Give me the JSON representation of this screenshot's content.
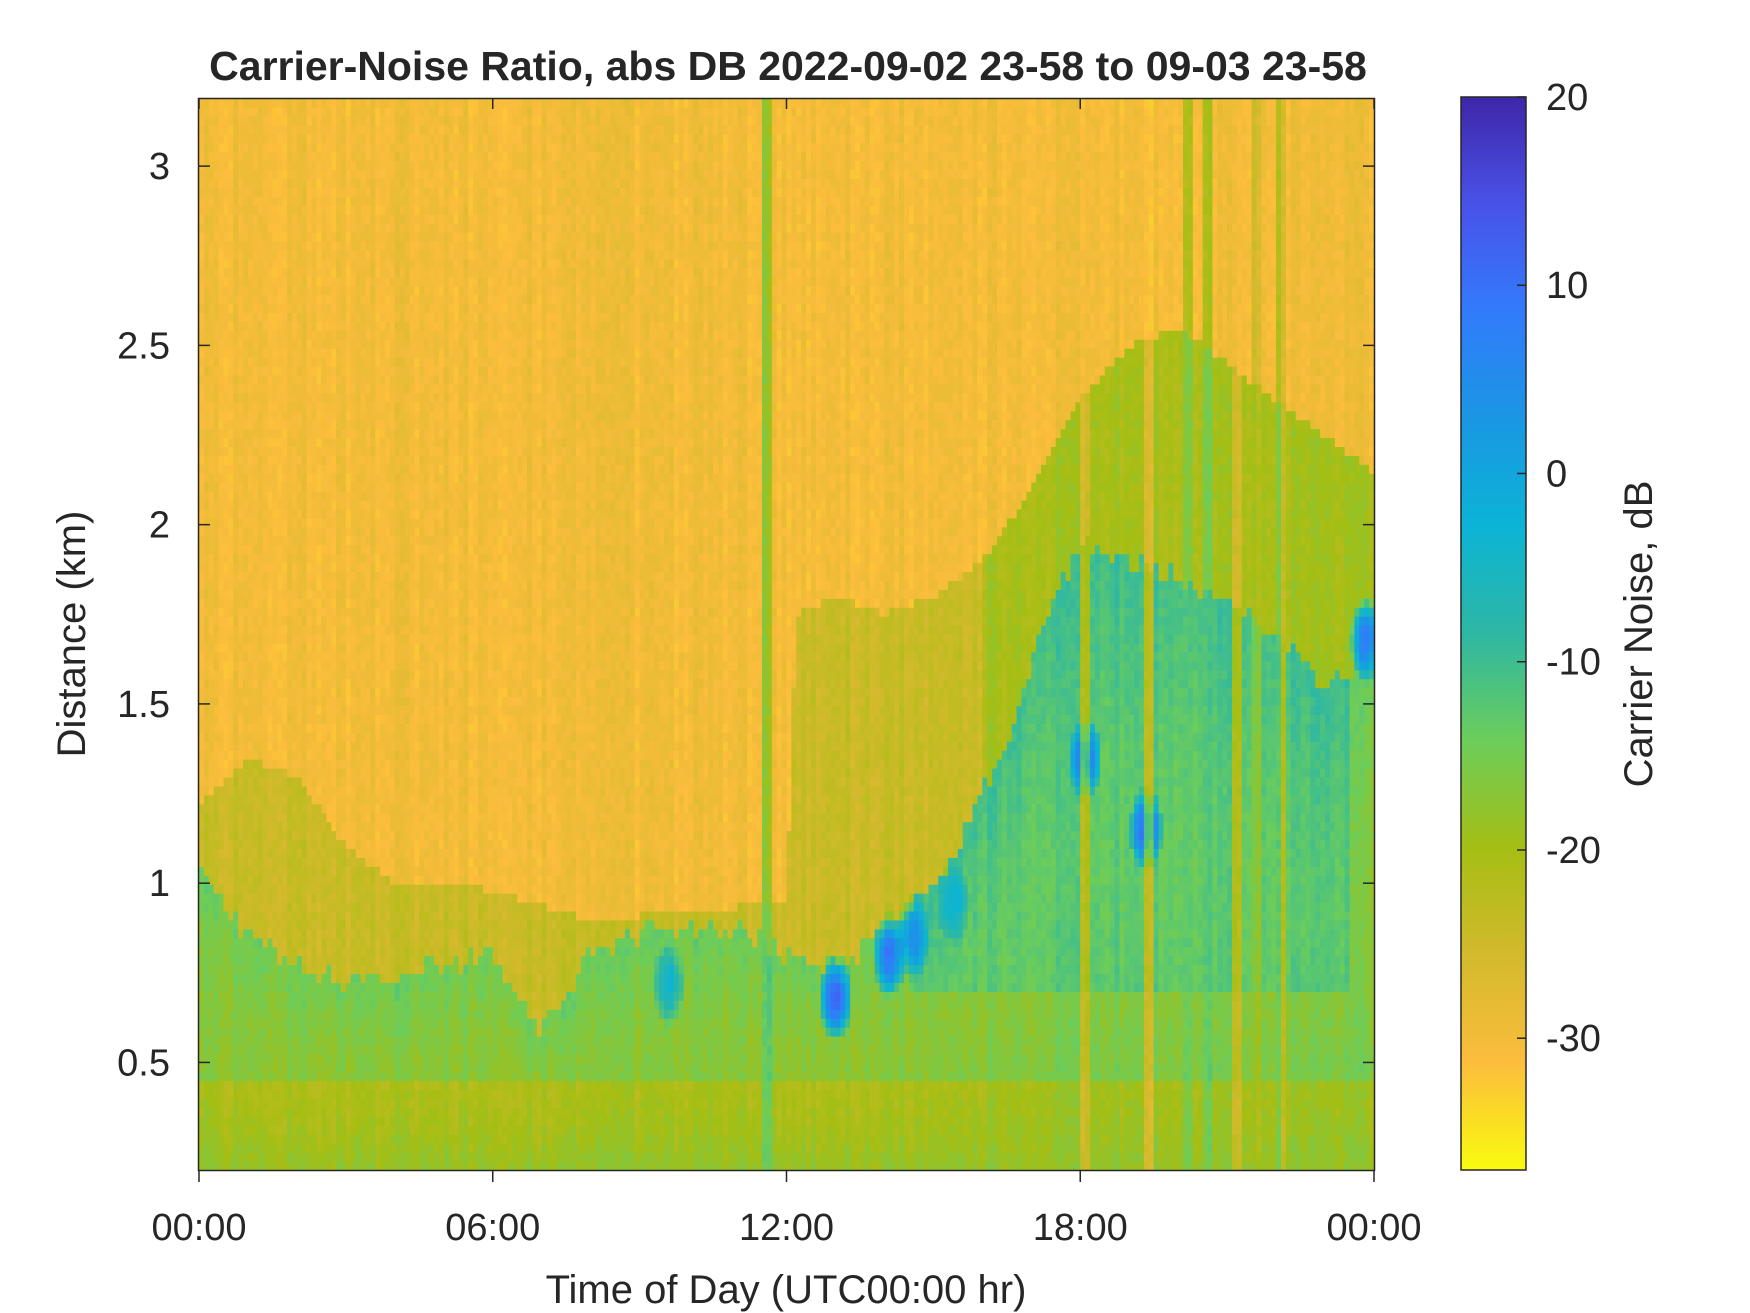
{
  "chart_data": {
    "type": "heatmap",
    "title": "Carrier-Noise Ratio, abs DB 2022-09-02 23-58 to 09-03 23-58",
    "xlabel": "Time of Day (UTC00:00 hr)",
    "ylabel": "Distance (km)",
    "x_ticks": [
      {
        "value": 0,
        "label": "00:00"
      },
      {
        "value": 6,
        "label": "06:00"
      },
      {
        "value": 12,
        "label": "12:00"
      },
      {
        "value": 18,
        "label": "18:00"
      },
      {
        "value": 24,
        "label": "00:00"
      }
    ],
    "y_ticks": [
      {
        "value": 0.5,
        "label": "0.5"
      },
      {
        "value": 1.0,
        "label": "1"
      },
      {
        "value": 1.5,
        "label": "1.5"
      },
      {
        "value": 2.0,
        "label": "2"
      },
      {
        "value": 2.5,
        "label": "2.5"
      },
      {
        "value": 3.0,
        "label": "3"
      }
    ],
    "xlim": [
      0,
      24
    ],
    "ylim": [
      0.2,
      3.19
    ],
    "colorbar": {
      "label": "Carrier Noise, dB",
      "lim": [
        -37,
        20
      ],
      "ticks": [
        {
          "value": 20,
          "label": "20"
        },
        {
          "value": 10,
          "label": "10"
        },
        {
          "value": 0,
          "label": "0"
        },
        {
          "value": -10,
          "label": "-10"
        },
        {
          "value": -20,
          "label": "-20"
        },
        {
          "value": -30,
          "label": "-30"
        }
      ],
      "colors": [
        "#f9fb0e",
        "#fcbd3d",
        "#d3ba2c",
        "#a5be14",
        "#6ccd5a",
        "#2eb7a4",
        "#0bb4d6",
        "#1a97e3",
        "#327bfc",
        "#4952e8",
        "#3e26a8"
      ]
    },
    "background_db": -30,
    "boundary": {
      "description_units": "hour -> distance km of the low-level (green/blue) layer top",
      "hours": [
        0,
        0.5,
        1,
        2,
        3,
        4,
        5,
        6,
        6.5,
        7,
        7.5,
        8,
        9,
        10,
        11,
        12,
        12.5,
        13,
        13.5,
        14,
        14.5,
        15,
        15.5,
        16,
        16.5,
        17,
        17.5,
        18,
        19,
        20,
        21,
        22,
        23,
        23.5,
        24
      ],
      "top_km": [
        1.05,
        0.95,
        0.85,
        0.78,
        0.72,
        0.74,
        0.78,
        0.8,
        0.68,
        0.6,
        0.7,
        0.8,
        0.86,
        0.88,
        0.88,
        0.8,
        0.78,
        0.76,
        0.8,
        0.88,
        0.92,
        1.0,
        1.1,
        1.25,
        1.4,
        1.6,
        1.8,
        1.95,
        1.9,
        1.85,
        1.8,
        1.7,
        1.55,
        1.6,
        1.65
      ]
    },
    "mid_layer": {
      "description_units": "hour -> distance km of a weaker intermediate (olive/green) layer top",
      "hours": [
        0,
        1,
        2,
        3,
        4,
        5,
        6,
        8,
        10,
        12,
        12.2,
        13,
        14,
        15,
        16,
        17,
        18,
        19,
        20,
        21,
        22,
        23,
        24
      ],
      "top_km": [
        1.22,
        1.35,
        1.3,
        1.1,
        1.0,
        1.0,
        0.98,
        0.9,
        0.92,
        0.95,
        1.75,
        1.8,
        1.75,
        1.8,
        1.9,
        2.1,
        2.35,
        2.5,
        2.55,
        2.45,
        2.35,
        2.25,
        2.15
      ]
    },
    "strong_cores": [
      {
        "hour": 9.6,
        "km": 0.72,
        "db": -4
      },
      {
        "hour": 13.0,
        "km": 0.68,
        "db": 12
      },
      {
        "hour": 14.1,
        "km": 0.8,
        "db": 9
      },
      {
        "hour": 14.6,
        "km": 0.85,
        "db": 5
      },
      {
        "hour": 15.4,
        "km": 0.95,
        "db": -3
      },
      {
        "hour": 18.1,
        "km": 1.35,
        "db": 10
      },
      {
        "hour": 19.35,
        "km": 1.15,
        "db": 12
      },
      {
        "hour": 23.85,
        "km": 1.68,
        "db": 8
      }
    ],
    "vertical_streaks": [
      {
        "hour": 11.55,
        "db": -17
      },
      {
        "hour": 11.6,
        "db": -8
      },
      {
        "hour": 18.1,
        "db": -30
      },
      {
        "hour": 19.4,
        "db": -32
      },
      {
        "hour": 20.2,
        "db": -12
      },
      {
        "hour": 20.6,
        "db": -10
      },
      {
        "hour": 21.2,
        "db": -30
      },
      {
        "hour": 21.6,
        "db": -22
      },
      {
        "hour": 22.1,
        "db": -12
      },
      {
        "hour": 22.15,
        "db": -30
      }
    ]
  }
}
